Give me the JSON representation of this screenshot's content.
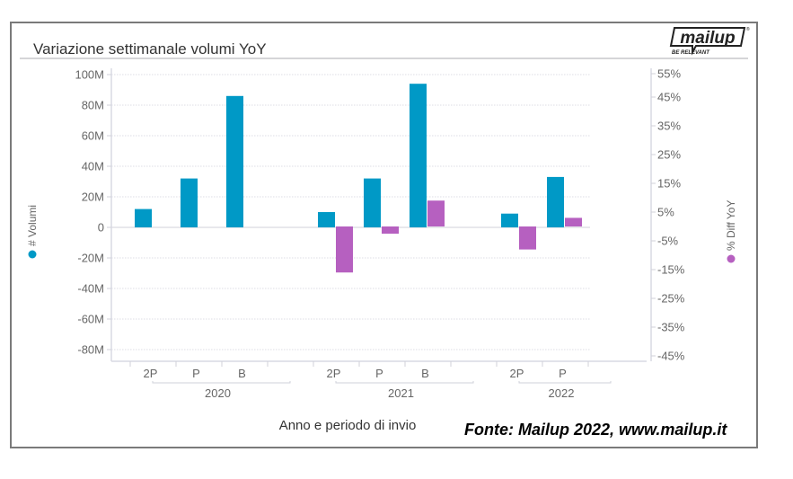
{
  "window": {
    "title": "Variazione settimanale volumi YoY",
    "source_note": "Fonte: Mailup 2022, www.mailup.it",
    "logo": {
      "brand": "mailup",
      "tagline": "BE RELEVANT",
      "icon": "mailup-logo-icon"
    }
  },
  "chart_data": {
    "type": "bar",
    "title": "Variazione settimanale volumi YoY",
    "xlabel": "Anno e periodo di invio",
    "ylabel": "# Volumi",
    "y2label": "% Diff YoY",
    "colors": {
      "volumes": "#0099c6",
      "diff": "#b660c0"
    },
    "groups": [
      {
        "year": "2020",
        "categories": [
          "2P",
          "P",
          "B"
        ]
      },
      {
        "year": "2021",
        "categories": [
          "2P",
          "P",
          "B"
        ]
      },
      {
        "year": "2022",
        "categories": [
          "2P",
          "P"
        ]
      }
    ],
    "categories": [
      "2020 2P",
      "2020 P",
      "2020 B",
      "2021 2P",
      "2021 P",
      "2021 B",
      "2022 2P",
      "2022 P"
    ],
    "series": [
      {
        "name": "# Volumi",
        "axis": "left",
        "unit": "M",
        "values": [
          12,
          32,
          86,
          10,
          32,
          94,
          9,
          33
        ]
      },
      {
        "name": "% Diff YoY",
        "axis": "right",
        "unit": "%",
        "values": [
          null,
          null,
          null,
          -16,
          -2.5,
          9,
          -8,
          3
        ]
      }
    ],
    "ylim": [
      -90,
      100
    ],
    "y_ticks": [
      "100M",
      "80M",
      "60M",
      "40M",
      "20M",
      "0",
      "-20M",
      "-40M",
      "-60M",
      "-80M"
    ],
    "y_tick_values": [
      100,
      80,
      60,
      40,
      20,
      0,
      -20,
      -40,
      -60,
      -80
    ],
    "y2lim": [
      -47,
      55
    ],
    "y2_ticks": [
      "55%",
      "45%",
      "35%",
      "25%",
      "15%",
      "5%",
      "-5%",
      "-15%",
      "-25%",
      "-35%",
      "-45%"
    ],
    "y2_tick_values": [
      55,
      45,
      35,
      25,
      15,
      5,
      -5,
      -15,
      -25,
      -35,
      -45
    ],
    "grid": true,
    "legend": [
      {
        "label": "# Volumi",
        "position": "left"
      },
      {
        "label": "% Diff YoY",
        "position": "right"
      }
    ]
  }
}
